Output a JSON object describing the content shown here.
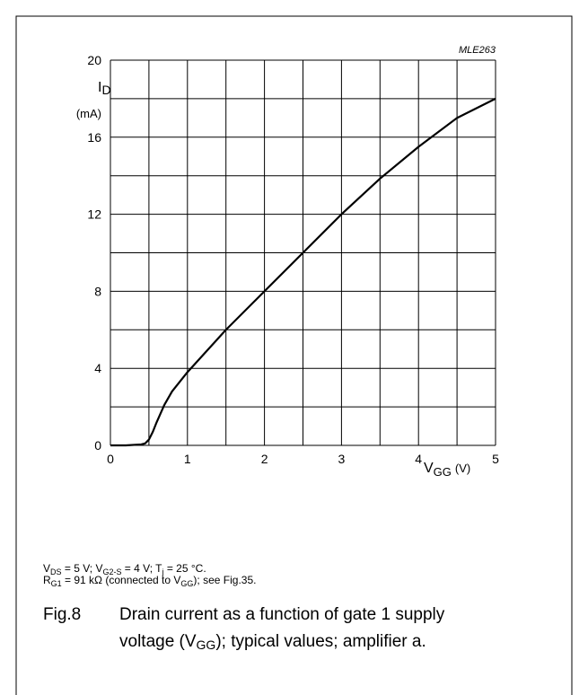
{
  "chart_data": {
    "type": "line",
    "code": "MLE263",
    "ylabel": {
      "main": "I",
      "sub": "D",
      "unit": "(mA)"
    },
    "xlabel": {
      "main": "V",
      "sub": "GG",
      "unit": "(V)"
    },
    "x": [
      0,
      0.2,
      0.4,
      0.45,
      0.5,
      0.55,
      0.6,
      0.7,
      0.8,
      0.9,
      1,
      1.25,
      1.5,
      2,
      2.5,
      3,
      3.5,
      4,
      4.5,
      5
    ],
    "series": [
      {
        "color": "#000000",
        "values": [
          0,
          0,
          0.05,
          0.1,
          0.3,
          0.7,
          1.2,
          2.1,
          2.8,
          3.3,
          3.8,
          4.9,
          6.0,
          8.0,
          10.0,
          12.0,
          13.85,
          15.5,
          17.0,
          18.0
        ]
      }
    ],
    "xlim": [
      0,
      5
    ],
    "ylim": [
      0,
      20
    ],
    "xticks": [
      0,
      1,
      2,
      3,
      4,
      5
    ],
    "yticks": [
      0,
      4,
      8,
      12,
      16,
      20
    ],
    "xgrid": [
      0,
      0.5,
      1,
      1.5,
      2,
      2.5,
      3,
      3.5,
      4,
      4.5,
      5
    ],
    "ygrid": [
      0,
      2,
      4,
      6,
      8,
      10,
      12,
      14,
      16,
      18,
      20
    ],
    "grid": true
  },
  "notes": [
    [
      {
        "text": "V"
      },
      {
        "sub": "DS"
      },
      {
        "text": " = 5 V; V"
      },
      {
        "sub": "G2-S"
      },
      {
        "text": " = 4 V; T"
      },
      {
        "sub": "j"
      },
      {
        "text": " = 25 °C."
      }
    ],
    [
      {
        "text": "R"
      },
      {
        "sub": "G1"
      },
      {
        "text": " = 91 kΩ (connected to V"
      },
      {
        "sub": "GG"
      },
      {
        "text": "); see Fig.35."
      }
    ]
  ],
  "caption": {
    "number": "Fig.8",
    "lines": [
      [
        {
          "text": "Drain current as a function of gate 1 supply"
        }
      ],
      [
        {
          "text": "voltage (V"
        },
        {
          "sub": "GG"
        },
        {
          "text": "); typical values; amplifier a."
        }
      ]
    ]
  }
}
